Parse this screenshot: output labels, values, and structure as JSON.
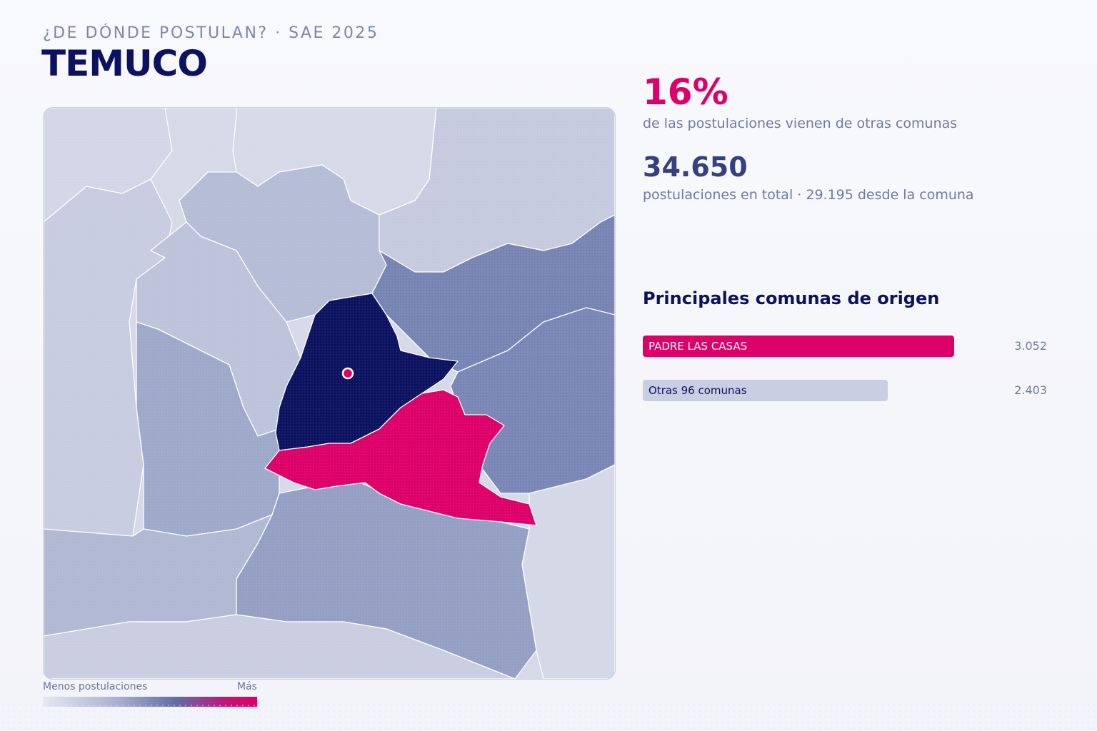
{
  "header": {
    "eyebrow": "¿DE DÓNDE POSTULAN? · SAE 2025",
    "title": "TEMUCO"
  },
  "map": {
    "highlight_commune": "Temuco",
    "colors": {
      "target": "#0c1260",
      "top_origin": "#dc0068",
      "scale_low": "#d5d9e8",
      "scale_high": "#6f7daf",
      "border": "#ffffff"
    },
    "legend": {
      "min_label": "Menos postulaciones",
      "max_label": "Más"
    }
  },
  "stats": {
    "external_pct": "16%",
    "external_desc": "de las postulaciones vienen de otras comunas",
    "total": "34.650",
    "total_desc": "postulaciones en total · 29.195 desde la comuna"
  },
  "origins": {
    "title": "Principales comunas de origen",
    "items": [
      {
        "label": "PADRE LAS CASAS",
        "value": "3.052",
        "amount": 3052,
        "color": "#dc0068",
        "text_color": "#ffffff"
      },
      {
        "label": "Otras 96 comunas",
        "value": "2.403",
        "amount": 2403,
        "color": "#c9cee2",
        "text_color": "#0c1260"
      }
    ]
  }
}
